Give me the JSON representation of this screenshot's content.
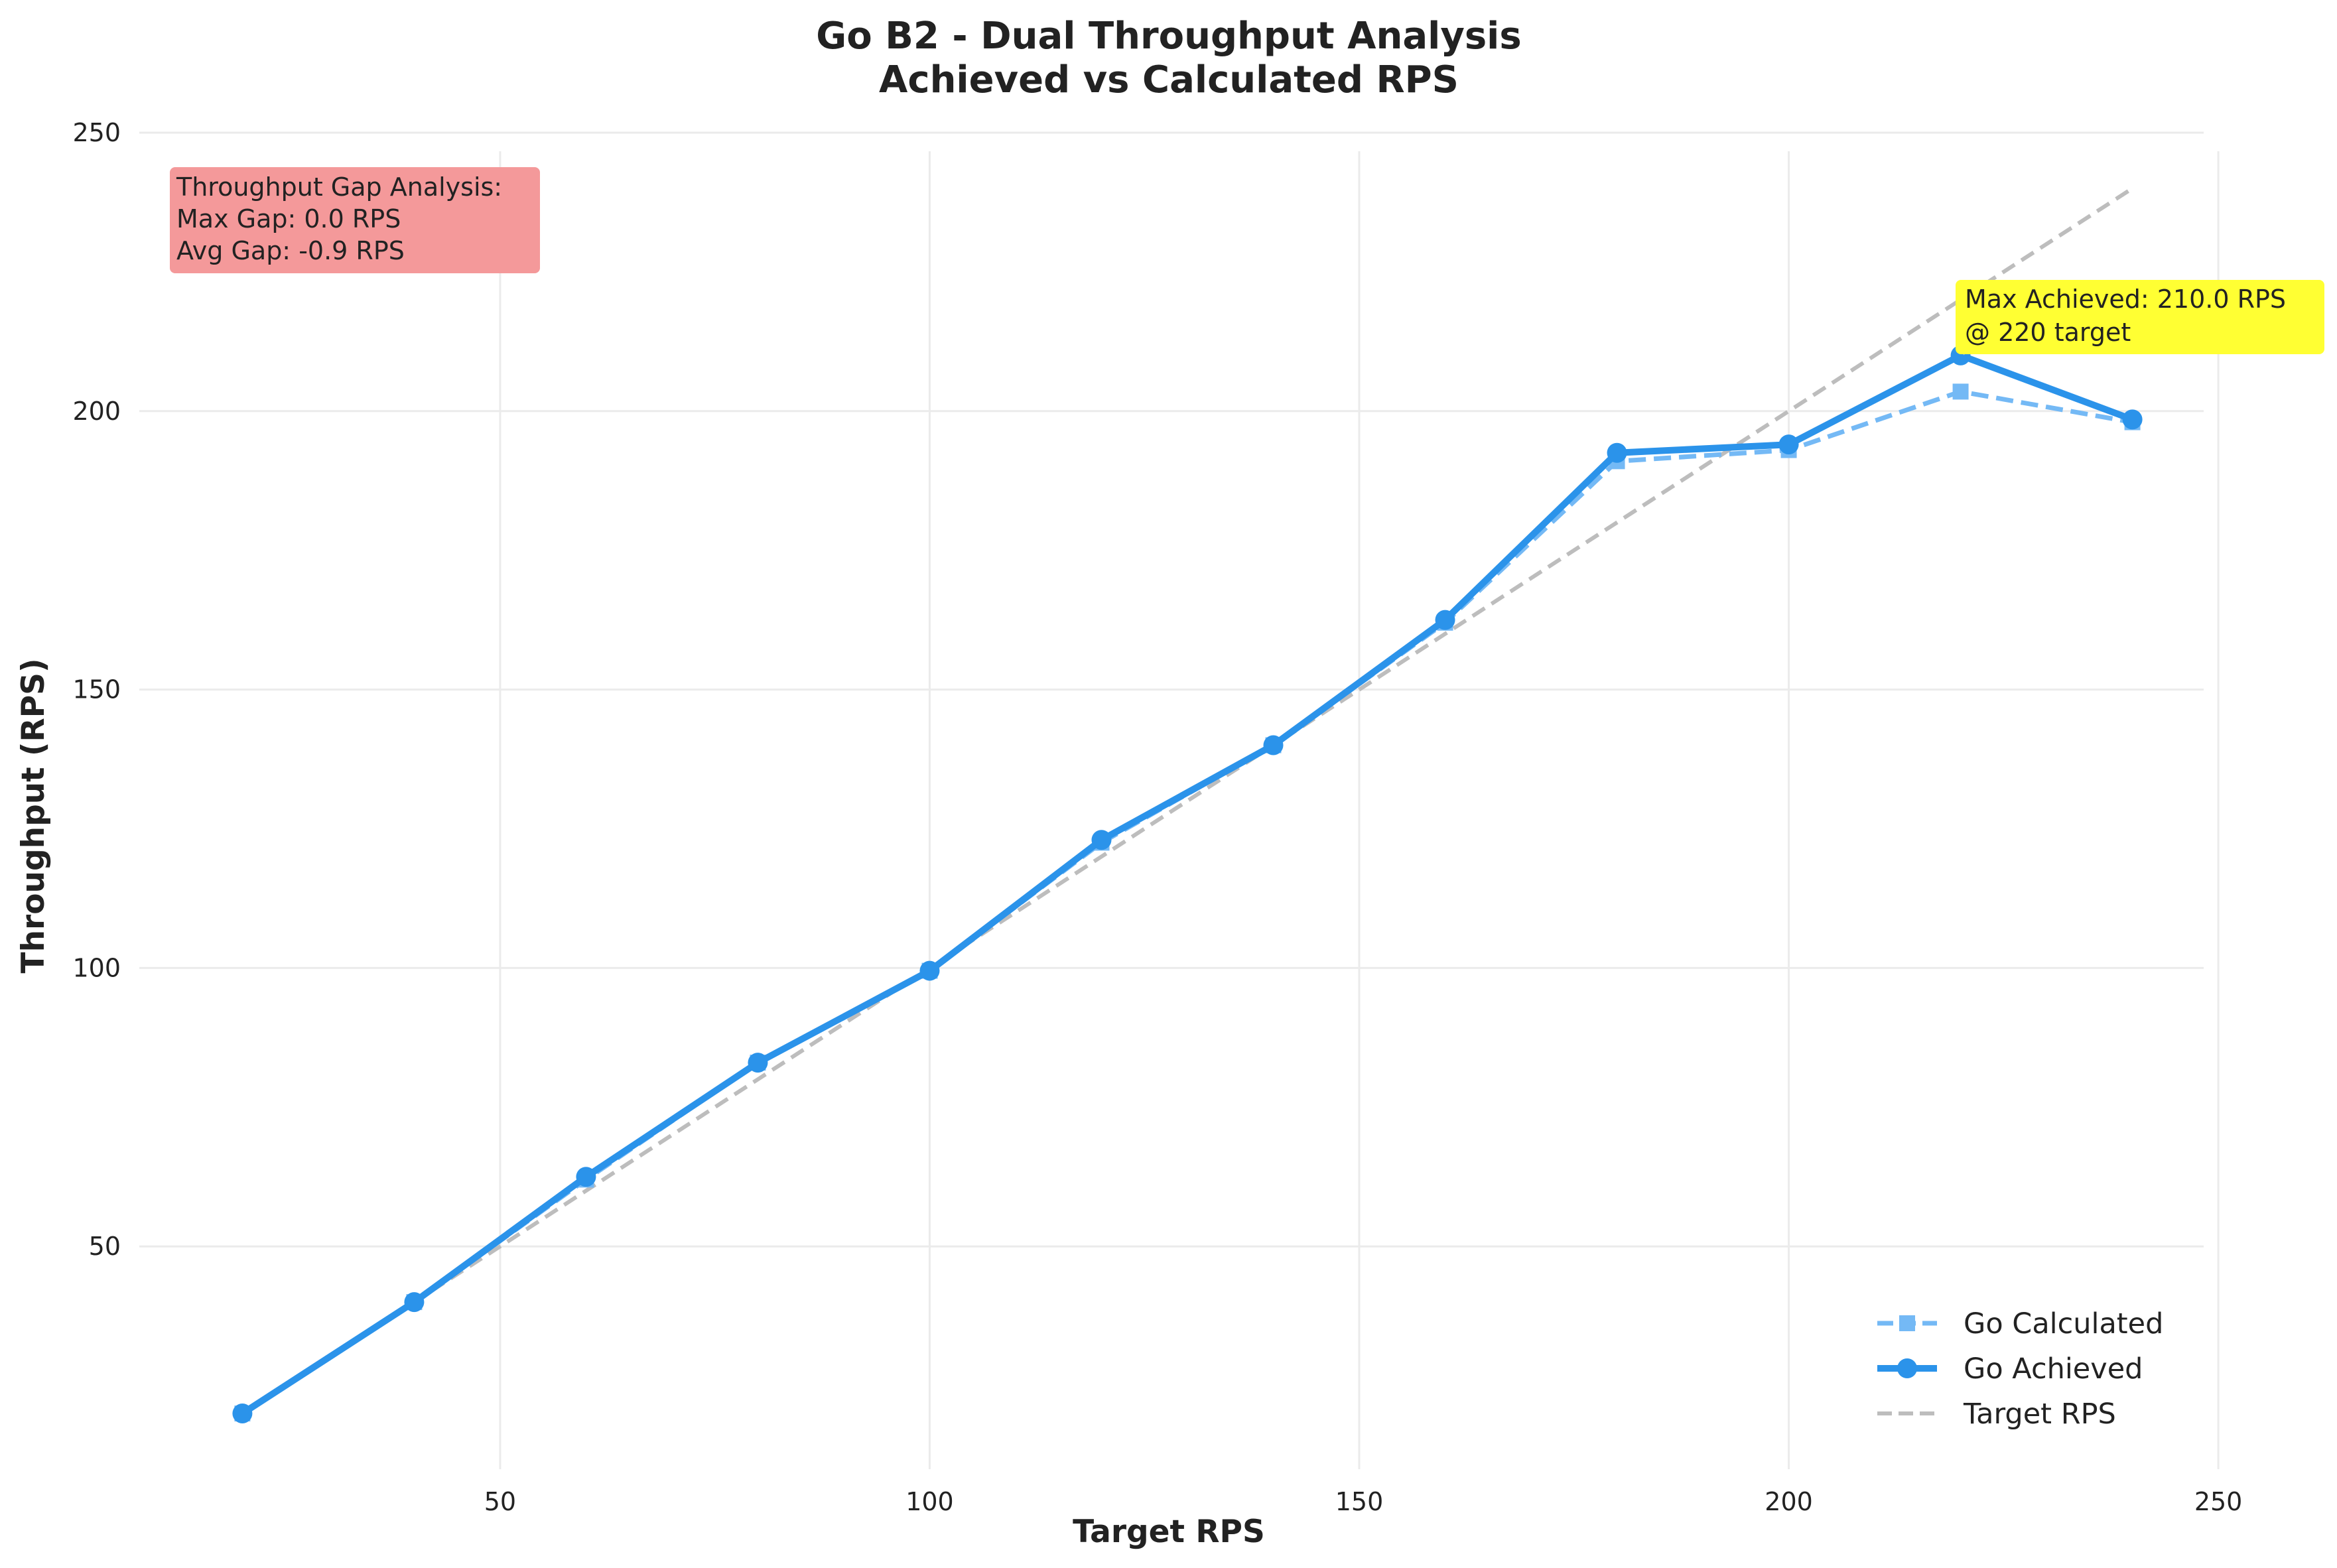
{
  "chart_data": {
    "type": "line",
    "title": "Go B2 - Dual Throughput Analysis",
    "subtitle": "Achieved vs Calculated RPS",
    "xlabel": "Target RPS",
    "ylabel": "Throughput (RPS)",
    "xlim": [
      8,
      252
    ],
    "ylim": [
      10,
      250
    ],
    "x_ticks": [
      "50",
      "100",
      "150",
      "200",
      "250"
    ],
    "y_ticks": [
      "50",
      "100",
      "150",
      "200",
      "250"
    ],
    "grid": true,
    "legend_position": "bottom-right",
    "series": [
      {
        "name": "Go Calculated",
        "color": "#74b9f5",
        "style": "dashed",
        "marker": "square",
        "x": [
          20,
          40,
          60,
          80,
          100,
          120,
          140,
          160,
          180,
          200,
          220,
          240
        ],
        "values": [
          20.0,
          40.0,
          62.0,
          83.0,
          99.5,
          122.5,
          140.0,
          162.0,
          191.0,
          193.0,
          203.5,
          198.0
        ]
      },
      {
        "name": "Go Achieved",
        "color": "#2b93ea",
        "style": "solid",
        "marker": "circle",
        "x": [
          20,
          40,
          60,
          80,
          100,
          120,
          140,
          160,
          180,
          200,
          220,
          240
        ],
        "values": [
          20.0,
          40.0,
          62.5,
          83.0,
          99.5,
          123.0,
          140.0,
          162.5,
          192.5,
          194.0,
          210.0,
          198.5
        ]
      },
      {
        "name": "Target RPS",
        "color": "#bdbdbd",
        "style": "dashed",
        "marker": "none",
        "x": [
          20,
          240
        ],
        "values": [
          20,
          240
        ]
      }
    ],
    "annotations": {
      "gap_box": {
        "lines": [
          "Throughput Gap Analysis:",
          "Max Gap: 0.0 RPS",
          "Avg Gap: -0.9 RPS"
        ],
        "color": "#f4999a"
      },
      "max_point": {
        "lines": [
          "Max Achieved: 210.0 RPS",
          "@ 220 target"
        ],
        "x": 220,
        "y": 210.0,
        "color": "#ffff33"
      }
    }
  }
}
